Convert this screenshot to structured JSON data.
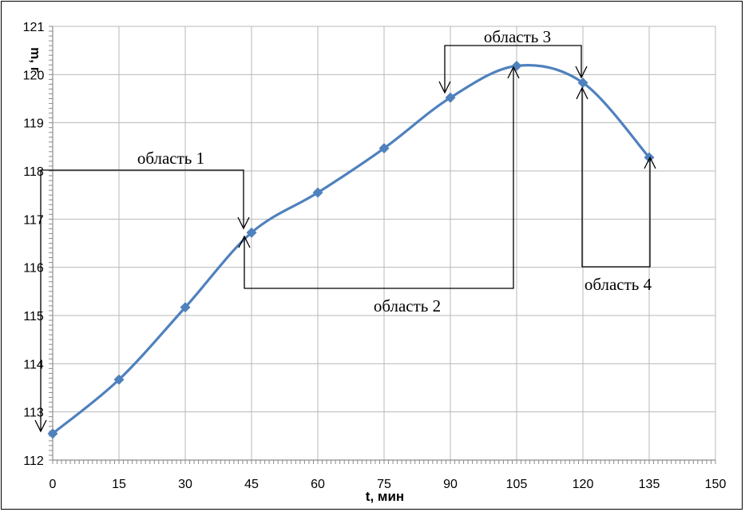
{
  "chart_data": {
    "type": "line",
    "xlabel": "t, мин",
    "ylabel": "m, г",
    "xlim": [
      0,
      150
    ],
    "ylim": [
      112,
      121
    ],
    "x_ticks": [
      0,
      15,
      30,
      45,
      60,
      75,
      90,
      105,
      120,
      135,
      150
    ],
    "y_ticks": [
      112,
      113,
      114,
      115,
      116,
      117,
      118,
      119,
      120,
      121
    ],
    "grid": true,
    "legend": "none",
    "series": [
      {
        "color": "#4f81bd",
        "marker": "diamond",
        "smooth": true,
        "points": [
          {
            "x": 0,
            "y": 112.55
          },
          {
            "x": 15,
            "y": 113.67
          },
          {
            "x": 30,
            "y": 115.17
          },
          {
            "x": 45,
            "y": 116.72
          },
          {
            "x": 60,
            "y": 117.55
          },
          {
            "x": 75,
            "y": 118.47
          },
          {
            "x": 90,
            "y": 119.52
          },
          {
            "x": 105,
            "y": 120.18
          },
          {
            "x": 120,
            "y": 119.83
          },
          {
            "x": 135,
            "y": 118.28
          }
        ]
      }
    ],
    "annotations": [
      {
        "label": "область 1"
      },
      {
        "label": "область 2"
      },
      {
        "label": "область 3"
      },
      {
        "label": "область 4"
      }
    ]
  }
}
